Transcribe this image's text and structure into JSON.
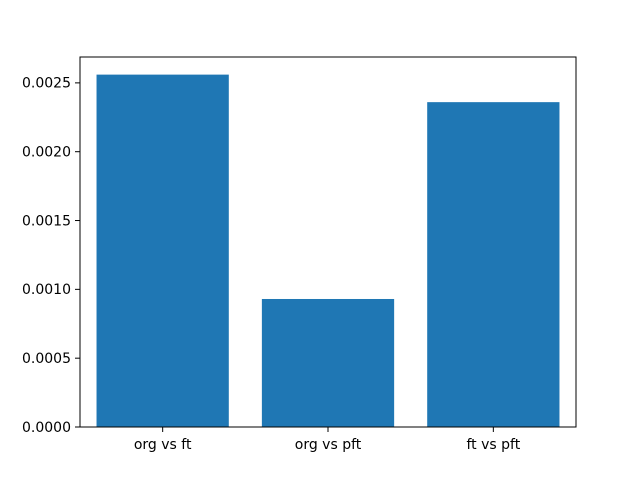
{
  "figure": {
    "background": "#ffffff"
  },
  "chart_data": {
    "type": "bar",
    "categories": [
      "org vs ft",
      "org vs pft",
      "ft vs pft"
    ],
    "values": [
      0.00256,
      0.00093,
      0.00236
    ],
    "title": "",
    "xlabel": "",
    "ylabel": "",
    "ylim": [
      0,
      0.002688
    ],
    "ytick_labels": [
      "0.0000",
      "0.0005",
      "0.0010",
      "0.0015",
      "0.0020",
      "0.0025"
    ],
    "grid": false,
    "legend": "none",
    "bar_color": "#1f77b4",
    "bar_width_fraction": 0.8,
    "spine_color": "#000000",
    "tick_color": "#000000",
    "text_color": "#000000"
  }
}
